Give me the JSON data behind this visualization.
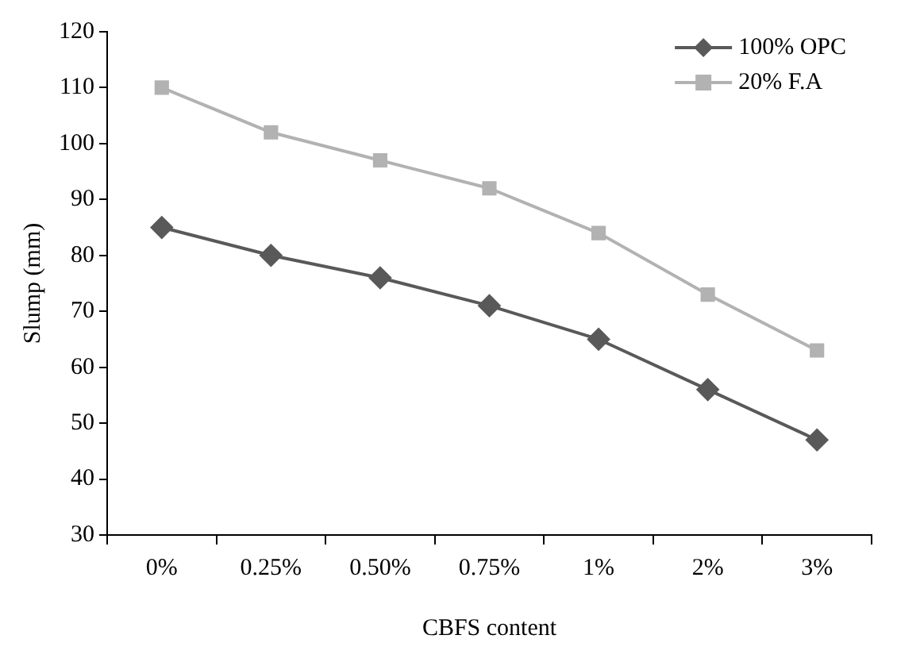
{
  "chart_data": {
    "type": "line",
    "xlabel": "CBFS content",
    "ylabel": "Slump (mm)",
    "categories": [
      "0%",
      "0.25%",
      "0.50%",
      "0.75%",
      "1%",
      "2%",
      "3%"
    ],
    "series": [
      {
        "name": "100% OPC",
        "color": "#595959",
        "marker": "diamond",
        "values": [
          85,
          80,
          76,
          71,
          65,
          56,
          47
        ]
      },
      {
        "name": "20% F.A",
        "color": "#b2b2b2",
        "marker": "square",
        "values": [
          110,
          102,
          97,
          92,
          84,
          73,
          63
        ]
      }
    ],
    "ylim": [
      30,
      120
    ],
    "yticks": [
      30,
      40,
      50,
      60,
      70,
      80,
      90,
      100,
      110,
      120
    ],
    "grid": false,
    "legend": "top right",
    "line_style": "solid"
  }
}
